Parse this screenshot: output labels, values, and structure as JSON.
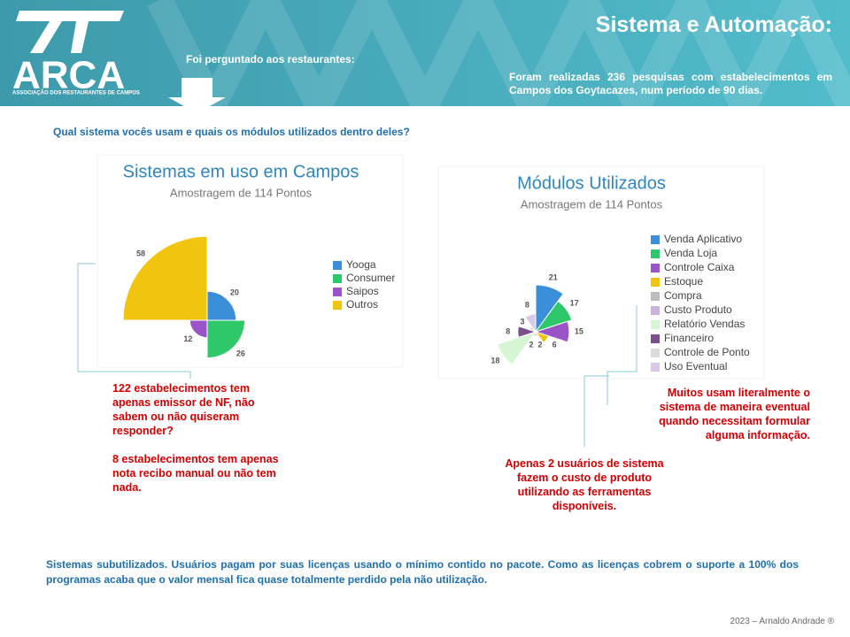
{
  "header": {
    "logo": "ARCA",
    "logo_subtitle": "ASSOCIAÇÃO DOS RESTAURANTES DE CAMPOS",
    "title": "Sistema e Automação:",
    "prompt": "Foi perguntado aos restaurantes:",
    "info": "Foram realizadas 236 pesquisas com estabelecimentos em Campos dos Goytacazes, num período de 90 dias."
  },
  "question": "Qual sistema vocês usam e quais os módulos utilizados dentro deles?",
  "chart_data": [
    {
      "type": "polar",
      "title": "Sistemas em uso em Campos",
      "subtitle": "Amostragem de 114 Pontos",
      "categories": [
        "Yooga",
        "Consumer",
        "Saipos",
        "Outros"
      ],
      "values": [
        20,
        26,
        12,
        58
      ],
      "colors": [
        "#3a8fd8",
        "#2ec76a",
        "#9b54c8",
        "#f1c40f"
      ]
    },
    {
      "type": "polar",
      "title": "Módulos Utilizados",
      "subtitle": "Amostragem de 114 Pontos",
      "categories": [
        "Venda Aplicativo",
        "Venda Loja",
        "Controle Caixa",
        "Estoque",
        "Compra",
        "Custo Produto",
        "Relatório Vendas",
        "Financeiro",
        "Controle de Ponto",
        "Uso Eventual"
      ],
      "values": [
        21,
        17,
        15,
        6,
        2,
        2,
        18,
        8,
        3,
        8
      ],
      "colors": [
        "#3a8fd8",
        "#2ec76a",
        "#9b54c8",
        "#f1c40f",
        "#bdbdbd",
        "#c8b4dc",
        "#d6f5d2",
        "#7b4f8c",
        "#d8ddd8",
        "#d8c9e6"
      ]
    }
  ],
  "notes": [
    "122 estabelecimentos tem apenas emissor de NF, não sabem ou não quiseram responder?",
    "8 estabelecimentos tem apenas nota recibo manual ou não tem nada.",
    "Muitos usam literalmente o sistema de maneira eventual quando necessitam formular alguma informação.",
    "Apenas 2 usuários de sistema fazem o custo de produto utilizando as ferramentas disponíveis."
  ],
  "summary": "Sistemas subutilizados. Usuários pagam por suas licenças usando o mínimo contido no pacote. Como as licenças cobrem o suporte a 100% dos programas acaba que o valor mensal fica quase totalmente perdido pela não utilização.",
  "footer": "2023 – Arnaldo Andrade ®"
}
